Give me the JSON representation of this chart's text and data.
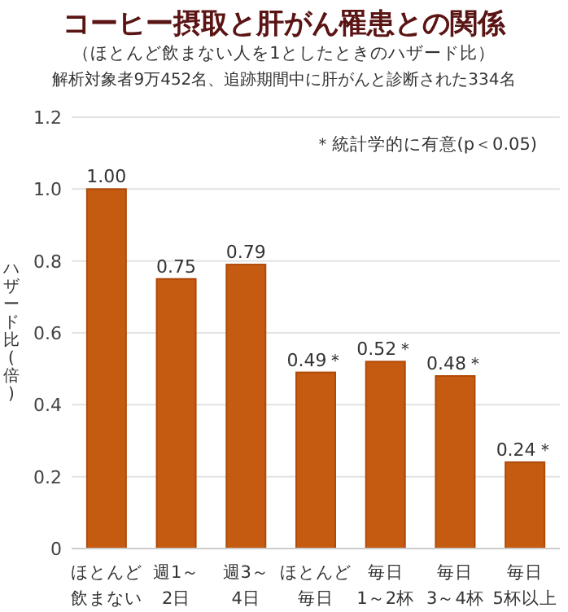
{
  "chart_data": {
    "type": "bar",
    "title": "コーヒー摂取と肝がん罹患との関係",
    "subtitle": "（ほとんど飲まない人を1としたときのハザード比）",
    "annotations": [
      "解析対象者9万452名、追跡期間中に肝がんと診断された334名",
      "＊統計学的に有意(p＜0.05)"
    ],
    "ylabel": "ハザード比(倍)",
    "categories": [
      "ほとんど飲まない",
      "週1～2日",
      "週3～4日",
      "ほとんど毎日",
      "毎日1～2杯",
      "毎日3～4杯",
      "毎日5杯以上"
    ],
    "values": [
      1.0,
      0.75,
      0.79,
      0.49,
      0.52,
      0.48,
      0.24
    ],
    "value_labels": [
      "1.00",
      "0.75",
      "0.79",
      "0.49＊",
      "0.52＊",
      "0.48＊",
      "0.24＊"
    ],
    "color": "#c55a11",
    "ylim": [
      0,
      1.2
    ],
    "yticks": [
      0,
      0.2,
      0.4,
      0.6,
      0.8,
      {
        "value": 1,
        "label": "1.0"
      },
      1.2
    ],
    "grid": "y"
  }
}
